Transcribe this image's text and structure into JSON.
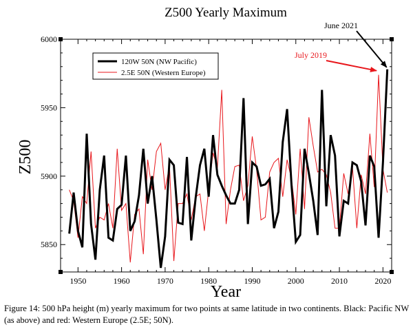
{
  "caption": "Figure 14: 500 hPa height (m) yearly maximum for two points at same latitude in two continents. Black: Pacific NW (as above) and red: Western Europe (2.5E; 50N).",
  "colors": {
    "black_series": "#000000",
    "red_series": "#e8161b"
  },
  "chart_data": {
    "type": "line",
    "title": "Z500 Yearly Maximum",
    "xlabel": "Year",
    "ylabel": "Z500",
    "xlim": [
      1946,
      2022
    ],
    "ylim": [
      5830,
      6000
    ],
    "x_ticks": [
      1950,
      1960,
      1970,
      1980,
      1990,
      2000,
      2010,
      2020
    ],
    "y_ticks": [
      5850,
      5900,
      5950,
      6000
    ],
    "grid": false,
    "legend_position": "top-left",
    "x": [
      1948,
      1949,
      1950,
      1951,
      1952,
      1953,
      1954,
      1955,
      1956,
      1957,
      1958,
      1959,
      1960,
      1961,
      1962,
      1963,
      1964,
      1965,
      1966,
      1967,
      1968,
      1969,
      1970,
      1971,
      1972,
      1973,
      1974,
      1975,
      1976,
      1977,
      1978,
      1979,
      1980,
      1981,
      1982,
      1983,
      1984,
      1985,
      1986,
      1987,
      1988,
      1989,
      1990,
      1991,
      1992,
      1993,
      1994,
      1995,
      1996,
      1997,
      1998,
      1999,
      2000,
      2001,
      2002,
      2003,
      2004,
      2005,
      2006,
      2007,
      2008,
      2009,
      2010,
      2011,
      2012,
      2013,
      2014,
      2015,
      2016,
      2017,
      2018,
      2019,
      2020,
      2021
    ],
    "series": [
      {
        "name": "120W 50N (NW Pacific)",
        "color": "#000000",
        "line_width": 3,
        "values": [
          5858,
          5888,
          5860,
          5848,
          5931,
          5865,
          5839,
          5890,
          5915,
          5855,
          5853,
          5876,
          5879,
          5915,
          5860,
          5867,
          5886,
          5920,
          5880,
          5900,
          5868,
          5833,
          5856,
          5912,
          5908,
          5866,
          5865,
          5914,
          5853,
          5884,
          5908,
          5920,
          5885,
          5930,
          5901,
          5893,
          5886,
          5880,
          5880,
          5890,
          5957,
          5865,
          5910,
          5907,
          5893,
          5894,
          5898,
          5862,
          5874,
          5925,
          5949,
          5894,
          5852,
          5857,
          5920,
          5902,
          5882,
          5857,
          5963,
          5878,
          5930,
          5915,
          5856,
          5882,
          5880,
          5910,
          5908,
          5896,
          5864,
          5915,
          5907,
          5855,
          5910,
          5978
        ]
      },
      {
        "name": "2.5E 50N (Western Europe)",
        "color": "#e8161b",
        "line_width": 1,
        "values": [
          5890,
          5882,
          5855,
          5885,
          5880,
          5918,
          5862,
          5870,
          5868,
          5880,
          5862,
          5920,
          5875,
          5880,
          5837,
          5872,
          5876,
          5843,
          5912,
          5890,
          5918,
          5924,
          5890,
          5908,
          5838,
          5880,
          5880,
          5887,
          5868,
          5885,
          5887,
          5860,
          5890,
          5917,
          5906,
          5963,
          5865,
          5890,
          5907,
          5908,
          5882,
          5893,
          5929,
          5905,
          5868,
          5870,
          5903,
          5910,
          5913,
          5885,
          5912,
          5898,
          5872,
          5920,
          5876,
          5943,
          5922,
          5903,
          5905,
          5901,
          5888,
          5862,
          5862,
          5902,
          5887,
          5907,
          5862,
          5901,
          5887,
          5931,
          5892,
          5974,
          5905,
          5888
        ]
      }
    ],
    "annotations": [
      {
        "text": "June 2021",
        "color": "#000000",
        "point": [
          2021,
          5978
        ]
      },
      {
        "text": "July 2019",
        "color": "#e8161b",
        "point": [
          2019,
          5974
        ]
      }
    ]
  }
}
